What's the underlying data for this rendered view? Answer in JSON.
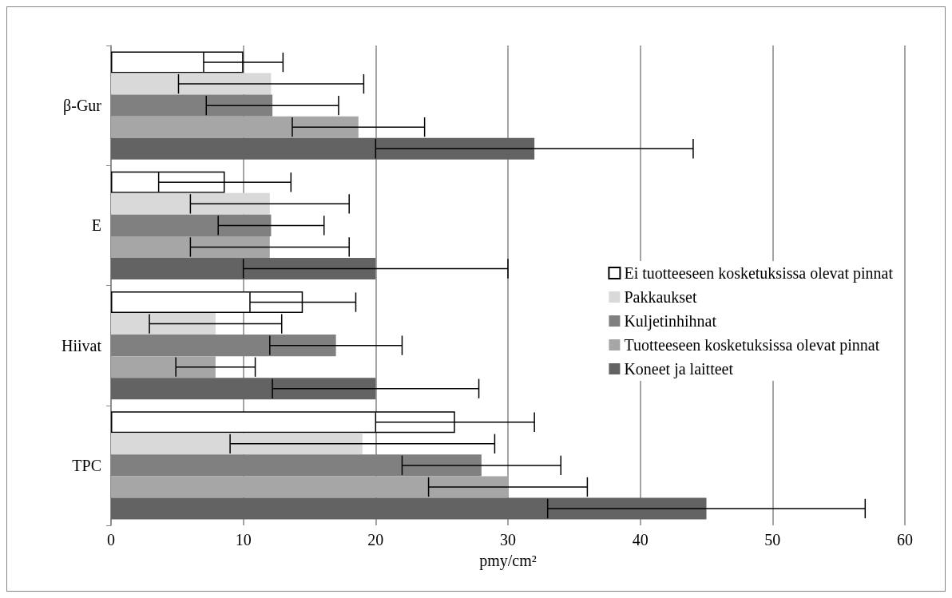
{
  "chart_data": {
    "type": "bar",
    "orientation": "horizontal",
    "xlabel": "pmy/cm²",
    "categories": [
      "β-Gur",
      "E",
      "Hiivat",
      "TPC"
    ],
    "series": [
      {
        "name": "Ei tuotteeseen kosketuksissa olevat pinnat",
        "color": "#ffffff",
        "values": [
          10,
          8.6,
          14.5,
          26
        ],
        "errors": [
          3,
          5,
          4,
          6
        ]
      },
      {
        "name": "Pakkaukset",
        "color": "#d9d9d9",
        "values": [
          12.1,
          12,
          7.9,
          19
        ],
        "errors": [
          7,
          6,
          5,
          10
        ]
      },
      {
        "name": "Kuljetinhihnat",
        "color": "#808080",
        "values": [
          12.2,
          12.1,
          17,
          28
        ],
        "errors": [
          5,
          4,
          5,
          6
        ]
      },
      {
        "name": "Tuotteeseen kosketuksissa olevat pinnat",
        "color": "#a6a6a6",
        "values": [
          18.7,
          12,
          7.9,
          30
        ],
        "errors": [
          5,
          6,
          3,
          6
        ]
      },
      {
        "name": "Koneet ja laitteet",
        "color": "#636363",
        "values": [
          32,
          20,
          20,
          45
        ],
        "errors": [
          12,
          10,
          7.8,
          12
        ]
      }
    ],
    "xlim": [
      0,
      60
    ],
    "xticks": [
      0,
      10,
      20,
      30,
      40,
      50,
      60
    ],
    "grid": "x",
    "legend": "right"
  }
}
